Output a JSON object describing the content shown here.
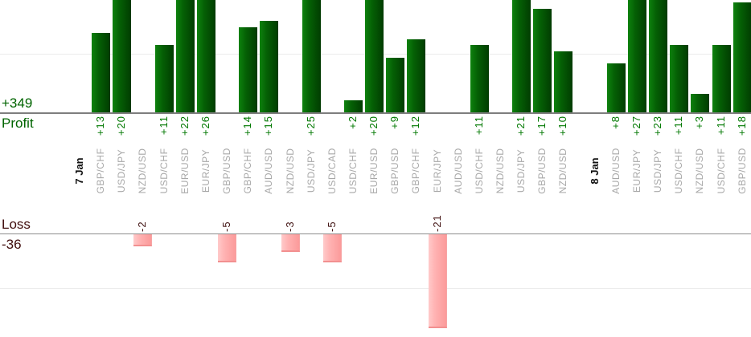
{
  "chart_data": {
    "type": "bar",
    "title": "",
    "xlabel": "",
    "ylabel": "",
    "orientation": "vertical",
    "legend": "none",
    "grid": "horizontal-faint",
    "profit_section": {
      "label": "Profit",
      "total": "+349"
    },
    "loss_section": {
      "label": "Loss",
      "total": "-36"
    },
    "items": [
      {
        "date": "7 Jan"
      },
      {
        "pair": "GBP/CHF",
        "value": 13
      },
      {
        "pair": "USD/JPY",
        "value": 20
      },
      {
        "pair": "NZD/USD",
        "value": -2
      },
      {
        "pair": "USD/CHF",
        "value": 11
      },
      {
        "pair": "EUR/USD",
        "value": 22
      },
      {
        "pair": "EUR/JPY",
        "value": 26
      },
      {
        "pair": "GBP/USD",
        "value": -5
      },
      {
        "pair": "GBP/CHF",
        "value": 14
      },
      {
        "pair": "AUD/USD",
        "value": 15
      },
      {
        "pair": "NZD/USD",
        "value": -3
      },
      {
        "pair": "USD/JPY",
        "value": 25
      },
      {
        "pair": "USD/CAD",
        "value": -5
      },
      {
        "pair": "USD/CHF",
        "value": 2
      },
      {
        "pair": "EUR/USD",
        "value": 20
      },
      {
        "pair": "GBP/USD",
        "value": 9
      },
      {
        "pair": "GBP/CHF",
        "value": 12
      },
      {
        "pair": "EUR/JPY",
        "value": -21
      },
      {
        "pair": "AUD/USD",
        "value": 0
      },
      {
        "pair": "USD/CHF",
        "value": 11
      },
      {
        "pair": "NZD/USD",
        "value": 0
      },
      {
        "pair": "USD/JPY",
        "value": 21
      },
      {
        "pair": "GBP/USD",
        "value": 17
      },
      {
        "pair": "NZD/USD",
        "value": 10
      },
      {
        "gap": true
      },
      {
        "date": "8 Jan"
      },
      {
        "pair": "AUD/USD",
        "value": 8
      },
      {
        "pair": "EUR/JPY",
        "value": 27
      },
      {
        "pair": "USD/JPY",
        "value": 23
      },
      {
        "pair": "USD/CHF",
        "value": 11
      },
      {
        "pair": "NZD/USD",
        "value": 3
      },
      {
        "pair": "USD/CHF",
        "value": 11
      },
      {
        "pair": "GBP/USD",
        "value": 18
      }
    ]
  },
  "colors": {
    "profit_text": "#006400",
    "profit_value_text": "#007800",
    "loss_text": "#400d0d",
    "loss_value_text": "#401111",
    "pair_text": "#a8a8a8",
    "date_text": "#111111",
    "profit_bar_light": "#0d820d",
    "profit_bar_mid": "#056005",
    "profit_bar_dark": "#013f01",
    "loss_bar_light": "#ffcaca",
    "loss_bar_mid": "#ffb3b3",
    "loss_bar_dark": "#fb9a9a",
    "axis_line": "#7e7e7e",
    "grid_line": "#ececec"
  }
}
